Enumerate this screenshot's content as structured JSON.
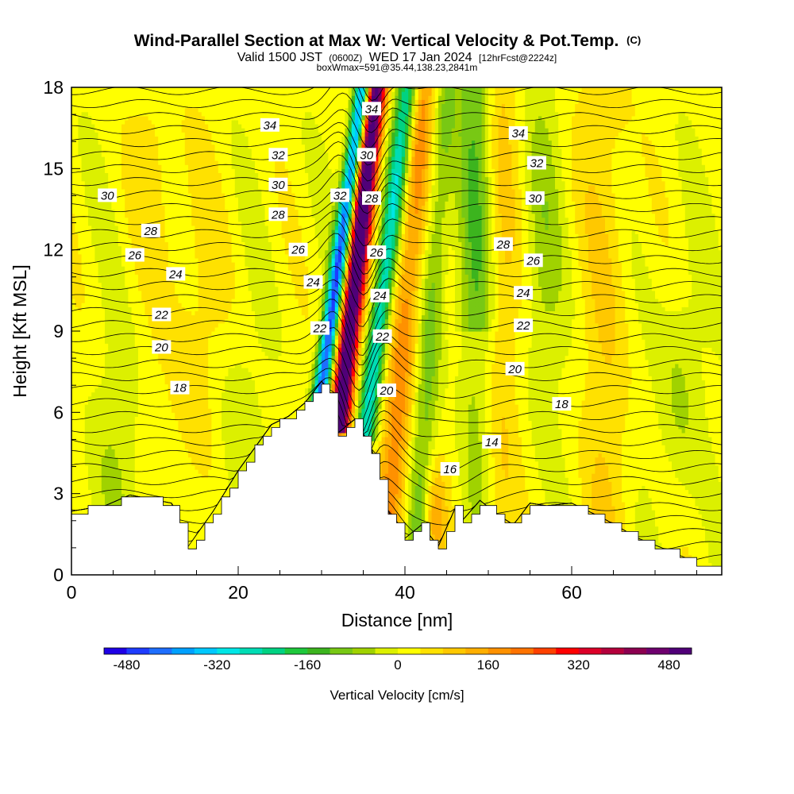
{
  "chart_data": {
    "type": "heatmap",
    "title": "Wind-Parallel Section at Max W: Vertical Velocity & Pot.Temp.",
    "title_unit": "(C)",
    "subtitle_parts": [
      "Valid 1500 JST",
      "(0600Z)",
      "WED 17 Jan 2024",
      "[12hrFcst@2224z]"
    ],
    "subtitle2": "boxWmax=591@35.44,138.23,2841m",
    "xlabel": "Distance [nm]",
    "ylabel": "Height [Kft MSL]",
    "xlim": [
      0,
      78
    ],
    "ylim": [
      0,
      18
    ],
    "x_ticks": [
      0,
      20,
      40,
      60
    ],
    "y_ticks": [
      0,
      3,
      6,
      9,
      12,
      15,
      18
    ],
    "colorbar": {
      "label": "Vertical Velocity [cm/s]",
      "min": -520,
      "max": 520,
      "step": 40,
      "tick_values": [
        -480,
        -320,
        -160,
        0,
        160,
        320,
        480
      ],
      "colors": [
        "#1e00e6",
        "#1e3cff",
        "#1e6eff",
        "#00a0ff",
        "#00c8ff",
        "#00e6e6",
        "#00dcb4",
        "#00d282",
        "#1ec83c",
        "#3cb41e",
        "#78c814",
        "#a0d200",
        "#dcf000",
        "#ffff00",
        "#ffe100",
        "#ffc800",
        "#ffaf00",
        "#ff9100",
        "#ff7300",
        "#ff4100",
        "#ff0000",
        "#dc0028",
        "#b4003c",
        "#8c0050",
        "#6e006e",
        "#500078"
      ]
    },
    "terrain_profile": {
      "x": [
        0,
        4,
        7,
        12,
        14,
        17,
        20,
        24,
        26,
        28,
        30,
        31,
        32,
        34,
        36,
        38,
        40,
        42,
        44,
        46,
        47,
        49,
        51,
        53,
        55,
        57,
        60,
        64,
        68,
        72,
        75,
        78
      ],
      "height": [
        2.3,
        2.5,
        2.9,
        2.6,
        1.0,
        2.3,
        3.8,
        5.5,
        5.8,
        6.3,
        7.1,
        6.7,
        5.2,
        5.7,
        4.6,
        2.3,
        1.3,
        1.8,
        1.0,
        2.4,
        2.0,
        2.7,
        2.2,
        1.8,
        2.6,
        2.5,
        2.6,
        2.0,
        1.3,
        0.8,
        0.4,
        0.3
      ]
    },
    "theta_contour_values": [
      14,
      16,
      18,
      20,
      22,
      24,
      26,
      28,
      30,
      32,
      34
    ],
    "theta_labels": [
      {
        "text": "34",
        "x": 23.8,
        "y": 16.6
      },
      {
        "text": "32",
        "x": 24.8,
        "y": 15.5
      },
      {
        "text": "30",
        "x": 24.8,
        "y": 14.4
      },
      {
        "text": "28",
        "x": 24.8,
        "y": 13.3
      },
      {
        "text": "30",
        "x": 4.3,
        "y": 14.0
      },
      {
        "text": "28",
        "x": 9.5,
        "y": 12.7
      },
      {
        "text": "26",
        "x": 7.6,
        "y": 11.8
      },
      {
        "text": "24",
        "x": 12.5,
        "y": 11.1
      },
      {
        "text": "22",
        "x": 10.8,
        "y": 9.6
      },
      {
        "text": "20",
        "x": 10.8,
        "y": 8.4
      },
      {
        "text": "18",
        "x": 13.0,
        "y": 6.9
      },
      {
        "text": "26",
        "x": 27.2,
        "y": 12.0
      },
      {
        "text": "24",
        "x": 29.0,
        "y": 10.8
      },
      {
        "text": "22",
        "x": 29.8,
        "y": 9.1
      },
      {
        "text": "32",
        "x": 32.2,
        "y": 14.0
      },
      {
        "text": "34",
        "x": 36.0,
        "y": 17.2
      },
      {
        "text": "30",
        "x": 35.4,
        "y": 15.5
      },
      {
        "text": "28",
        "x": 36.0,
        "y": 13.9
      },
      {
        "text": "26",
        "x": 36.6,
        "y": 11.9
      },
      {
        "text": "24",
        "x": 37.0,
        "y": 10.3
      },
      {
        "text": "22",
        "x": 37.3,
        "y": 8.8
      },
      {
        "text": "20",
        "x": 37.8,
        "y": 6.8
      },
      {
        "text": "34",
        "x": 53.6,
        "y": 16.3
      },
      {
        "text": "32",
        "x": 55.8,
        "y": 15.2
      },
      {
        "text": "30",
        "x": 55.6,
        "y": 13.9
      },
      {
        "text": "28",
        "x": 51.8,
        "y": 12.2
      },
      {
        "text": "26",
        "x": 55.4,
        "y": 11.6
      },
      {
        "text": "24",
        "x": 54.2,
        "y": 10.4
      },
      {
        "text": "22",
        "x": 54.2,
        "y": 9.2
      },
      {
        "text": "20",
        "x": 53.2,
        "y": 7.6
      },
      {
        "text": "18",
        "x": 58.8,
        "y": 6.3
      },
      {
        "text": "16",
        "x": 45.4,
        "y": 3.9
      },
      {
        "text": "14",
        "x": 50.4,
        "y": 4.9
      }
    ]
  }
}
